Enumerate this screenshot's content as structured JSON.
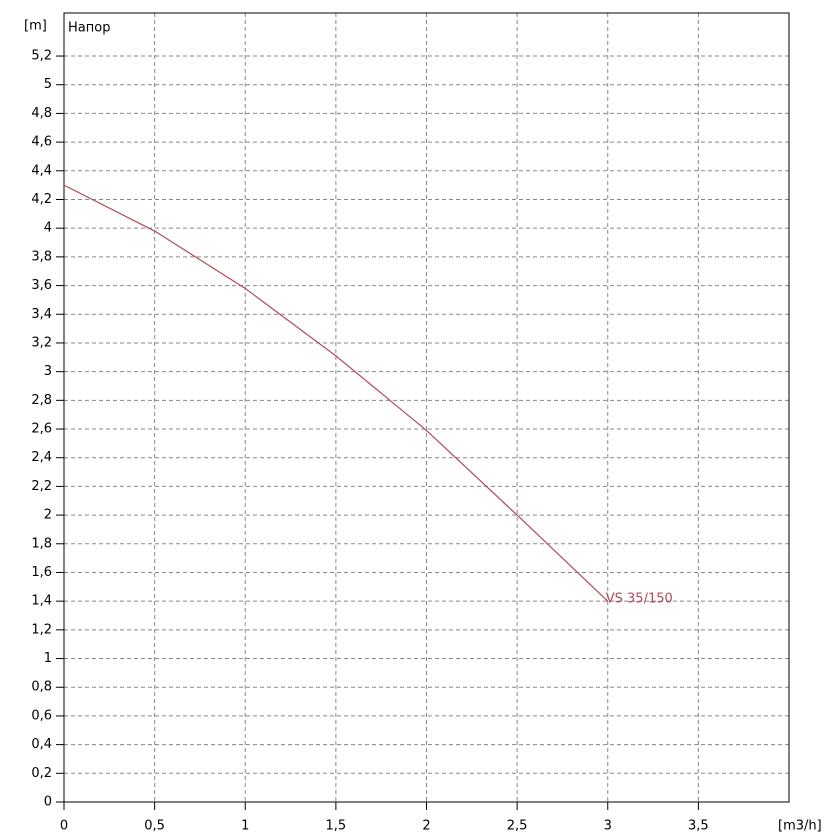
{
  "chart_data": {
    "type": "line",
    "title": "Напор",
    "y_label": "[m]",
    "x_label": "[m3/h]",
    "x": [
      0,
      0.5,
      1,
      1.5,
      2,
      2.5,
      3
    ],
    "series": [
      {
        "name": "VS 35/150",
        "color": "#b24a5a",
        "values": [
          4.3,
          3.98,
          3.58,
          3.11,
          2.59,
          2.0,
          1.4
        ]
      }
    ],
    "xlim": [
      0,
      4
    ],
    "ylim": [
      0,
      5.5
    ],
    "xticks": [
      0,
      {
        "value": 0.5,
        "label": "0,5"
      },
      1,
      {
        "value": 1.5,
        "label": "1,5"
      },
      2,
      {
        "value": 2.5,
        "label": "2,5"
      },
      3,
      {
        "value": 3.5,
        "label": "3,5"
      }
    ],
    "yticks": [
      0,
      {
        "value": 0.2,
        "label": "0,2"
      },
      {
        "value": 0.4,
        "label": "0,4"
      },
      {
        "value": 0.6,
        "label": "0,6"
      },
      {
        "value": 0.8,
        "label": "0,8"
      },
      1,
      {
        "value": 1.2,
        "label": "1,2"
      },
      {
        "value": 1.4,
        "label": "1,4"
      },
      {
        "value": 1.6,
        "label": "1,6"
      },
      {
        "value": 1.8,
        "label": "1,8"
      },
      2,
      {
        "value": 2.2,
        "label": "2,2"
      },
      {
        "value": 2.4,
        "label": "2,4"
      },
      {
        "value": 2.6,
        "label": "2,6"
      },
      {
        "value": 2.8,
        "label": "2,8"
      },
      3,
      {
        "value": 3.2,
        "label": "3,2"
      },
      {
        "value": 3.4,
        "label": "3,4"
      },
      {
        "value": 3.6,
        "label": "3,6"
      },
      {
        "value": 3.8,
        "label": "3,8"
      },
      4,
      {
        "value": 4.2,
        "label": "4,2"
      },
      {
        "value": 4.4,
        "label": "4,4"
      },
      {
        "value": 4.6,
        "label": "4,6"
      },
      {
        "value": 4.8,
        "label": "4,8"
      },
      5,
      {
        "value": 5.2,
        "label": "5,2"
      }
    ],
    "grid": true
  }
}
